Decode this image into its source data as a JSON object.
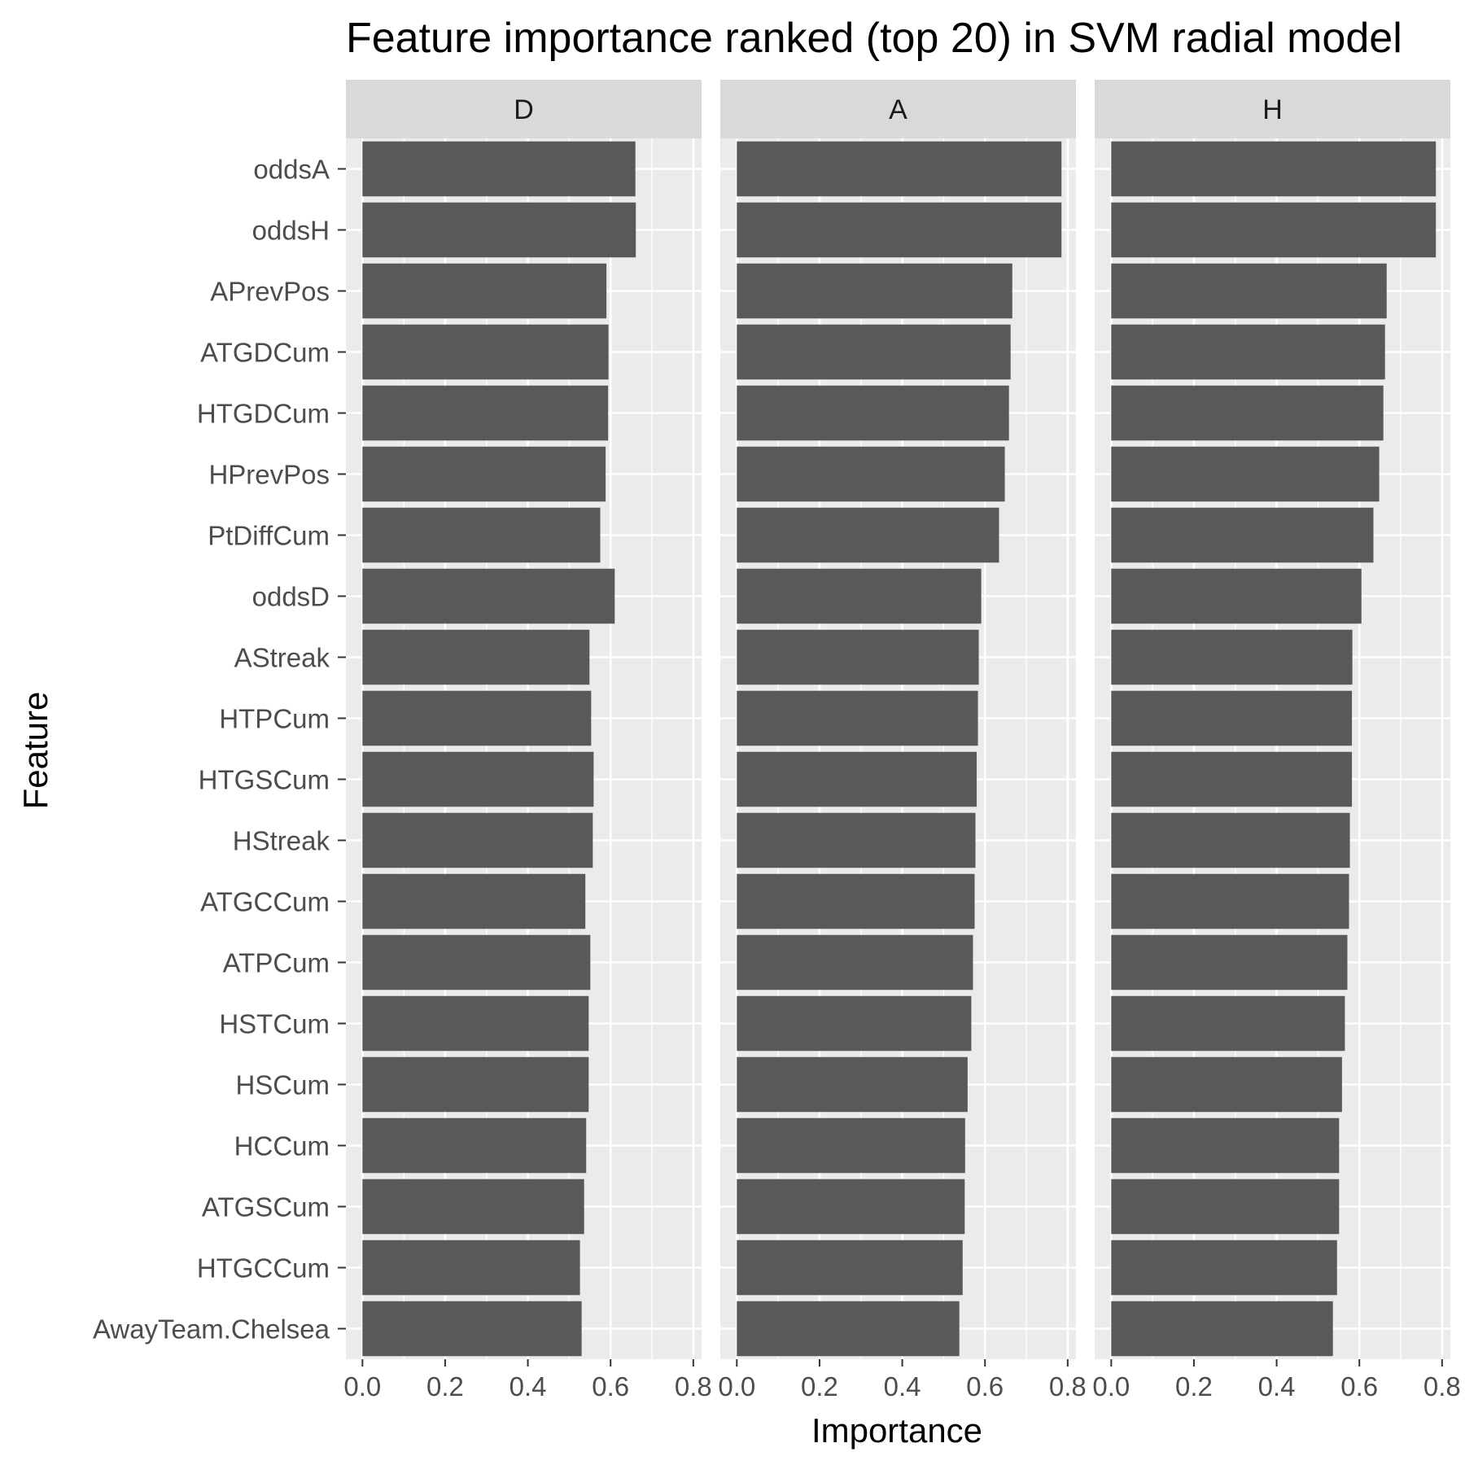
{
  "chart_data": {
    "type": "bar",
    "orientation": "horizontal",
    "title": "Feature importance ranked (top 20) in SVM radial model",
    "xlabel": "Importance",
    "ylabel": "Feature",
    "xlim": [
      -0.04,
      0.82
    ],
    "xticks": [
      0.0,
      0.2,
      0.4,
      0.6,
      0.8
    ],
    "xtick_labels": [
      "0.0",
      "0.2",
      "0.4",
      "0.6",
      "0.8"
    ],
    "grid": true,
    "bar_color": "#595959",
    "panel_background": "#ebebeb",
    "strip_background": "#d9d9d9",
    "grid_color": "#ffffff",
    "categories": [
      "oddsA",
      "oddsH",
      "APrevPos",
      "ATGDCum",
      "HTGDCum",
      "HPrevPos",
      "PtDiffCum",
      "oddsD",
      "AStreak",
      "HTPCum",
      "HTGSCum",
      "HStreak",
      "ATGCCum",
      "ATPCum",
      "HSTCum",
      "HSCum",
      "HCCum",
      "ATGSCum",
      "HTGCCum",
      "AwayTeam.Chelsea"
    ],
    "series": [
      {
        "name": "D",
        "values": [
          0.66,
          0.661,
          0.59,
          0.595,
          0.594,
          0.588,
          0.575,
          0.61,
          0.549,
          0.553,
          0.559,
          0.557,
          0.539,
          0.551,
          0.547,
          0.547,
          0.541,
          0.536,
          0.526,
          0.53
        ]
      },
      {
        "name": "A",
        "values": [
          0.785,
          0.785,
          0.666,
          0.662,
          0.658,
          0.648,
          0.634,
          0.591,
          0.585,
          0.583,
          0.58,
          0.577,
          0.575,
          0.571,
          0.567,
          0.558,
          0.552,
          0.551,
          0.546,
          0.538
        ]
      },
      {
        "name": "H",
        "values": [
          0.785,
          0.785,
          0.666,
          0.662,
          0.658,
          0.648,
          0.634,
          0.605,
          0.583,
          0.582,
          0.582,
          0.577,
          0.575,
          0.571,
          0.565,
          0.558,
          0.551,
          0.551,
          0.546,
          0.536
        ]
      }
    ]
  }
}
